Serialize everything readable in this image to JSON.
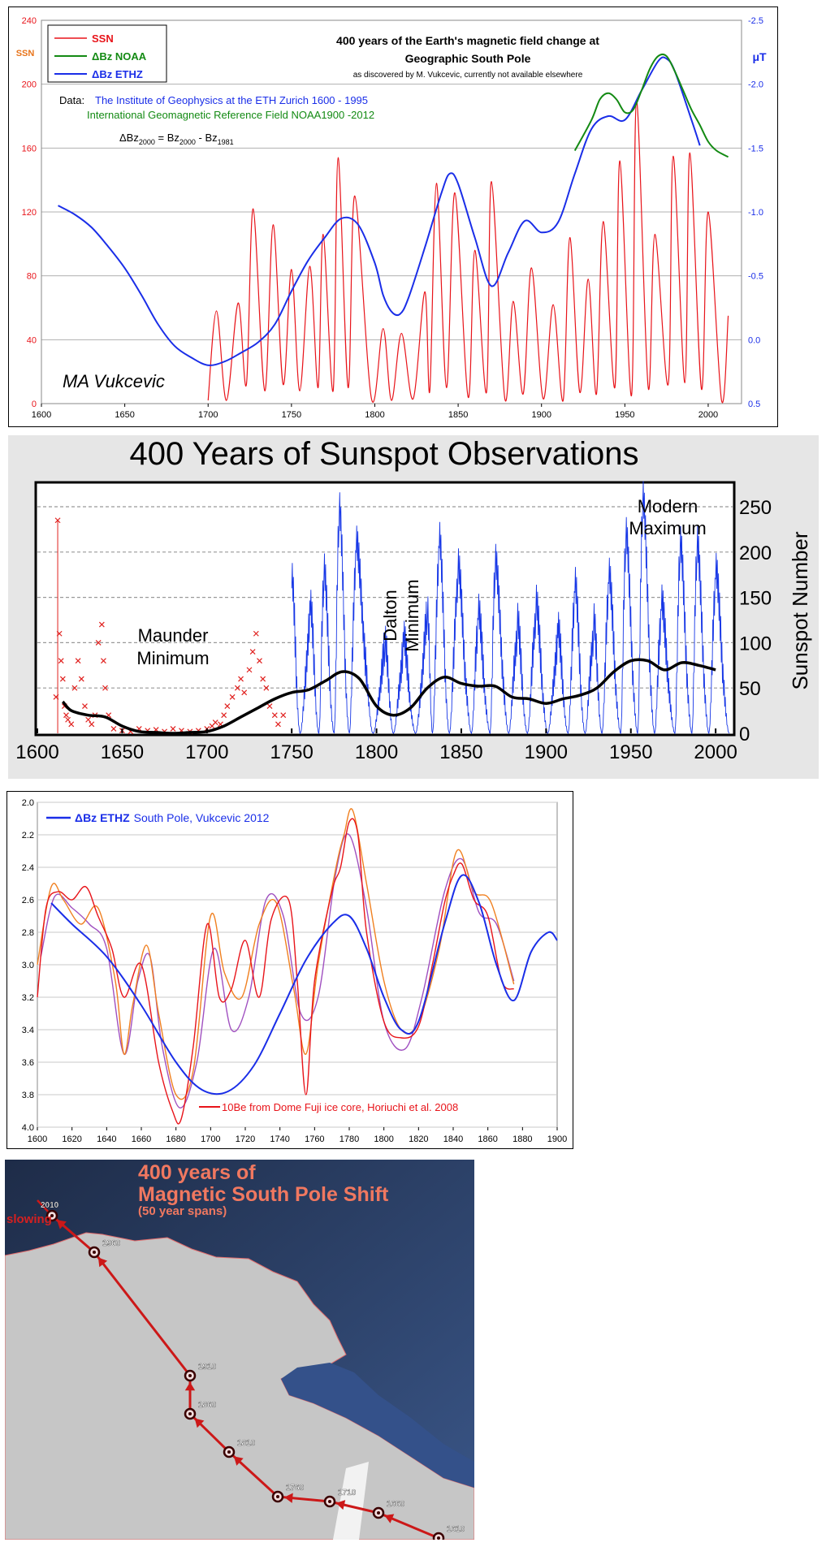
{
  "chart_data": [
    {
      "type": "line",
      "title": "400 years of the Earth's magnetic field change at",
      "title_line2": "Geographic South Pole",
      "subtitle": "as discovered by M. Vukcevic, currently not available elsewhere",
      "data_label": "Data:",
      "data_source_ethz": "The Institute of Geophysics at the ETH Zurich 1600 - 1995",
      "data_source_noaa": "International Geomagnetic Reference Field NOAA1900 -2012",
      "formula": {
        "prefix": "ΔBz",
        "sub1": "2000",
        "mid": " = Bz",
        "sub2": "2000",
        "mid2": " - Bz",
        "sub3": "1981"
      },
      "signature": "MA Vukcevic",
      "left_axis_label": "SSN",
      "right_axis_label": "μT",
      "xlim": [
        1600,
        2020
      ],
      "ylim_left": [
        0,
        240
      ],
      "ylim_right": [
        0.5,
        -2.5
      ],
      "x_ticks": [
        "1600",
        "1650",
        "1700",
        "1750",
        "1800",
        "1850",
        "1900",
        "1950",
        "2000"
      ],
      "y_ticks_left": [
        "0",
        "40",
        "80",
        "120",
        "160",
        "200",
        "240"
      ],
      "y_ticks_right": [
        "0.5",
        "0.0",
        "-0.5",
        "-1.0",
        "-1.5",
        "-2.0",
        "-2.5"
      ],
      "legend": {
        "placement": "top-left",
        "entries": [
          "SSN",
          "ΔBz NOAA",
          "ΔBz ETHZ"
        ]
      },
      "colors": {
        "SSN": "#e8141a",
        "NOAA": "#138a13",
        "ETHZ": "#1a2ee8"
      },
      "series": [
        {
          "name": "ΔBz ETHZ",
          "axis": "right",
          "x": [
            1610,
            1620,
            1630,
            1640,
            1650,
            1660,
            1670,
            1680,
            1690,
            1700,
            1710,
            1720,
            1730,
            1740,
            1750,
            1760,
            1770,
            1780,
            1790,
            1800,
            1805,
            1810,
            1815,
            1820,
            1830,
            1840,
            1845,
            1850,
            1860,
            1870,
            1880,
            1890,
            1900,
            1910,
            1920,
            1930,
            1940,
            1950,
            1960,
            1970,
            1975,
            1980,
            1990,
            1995
          ],
          "y": [
            -1.05,
            -0.98,
            -0.88,
            -0.73,
            -0.56,
            -0.35,
            -0.12,
            0.05,
            0.14,
            0.2,
            0.17,
            0.1,
            0.02,
            -0.12,
            -0.38,
            -0.62,
            -0.8,
            -0.95,
            -0.9,
            -0.6,
            -0.35,
            -0.22,
            -0.2,
            -0.32,
            -0.72,
            -1.15,
            -1.3,
            -1.22,
            -0.8,
            -0.42,
            -0.68,
            -0.93,
            -0.84,
            -0.92,
            -1.3,
            -1.65,
            -1.75,
            -1.72,
            -1.95,
            -2.18,
            -2.2,
            -2.1,
            -1.72,
            -1.52
          ]
        },
        {
          "name": "ΔBz NOAA",
          "axis": "right",
          "x": [
            1920,
            1930,
            1935,
            1940,
            1945,
            1950,
            1955,
            1960,
            1965,
            1970,
            1975,
            1980,
            1985,
            1990,
            1995,
            2000,
            2005,
            2012
          ],
          "y": [
            -1.48,
            -1.72,
            -1.88,
            -1.93,
            -1.88,
            -1.78,
            -1.8,
            -1.95,
            -2.12,
            -2.22,
            -2.22,
            -2.1,
            -1.95,
            -1.8,
            -1.68,
            -1.55,
            -1.48,
            -1.43
          ]
        },
        {
          "name": "SSN",
          "axis": "left",
          "x": [
            1700,
            1705,
            1711,
            1718,
            1723,
            1727,
            1734,
            1739,
            1745,
            1750,
            1755,
            1761,
            1766,
            1769,
            1775,
            1778,
            1784,
            1788,
            1798,
            1805,
            1810,
            1816,
            1823,
            1830,
            1833,
            1837,
            1843,
            1848,
            1856,
            1860,
            1867,
            1870,
            1878,
            1883,
            1889,
            1894,
            1901,
            1907,
            1913,
            1917,
            1923,
            1928,
            1933,
            1937,
            1944,
            1947,
            1954,
            1957,
            1964,
            1968,
            1976,
            1979,
            1986,
            1989,
            1996,
            2000,
            2008,
            2012
          ],
          "y": [
            2,
            58,
            2,
            63,
            12,
            122,
            8,
            112,
            12,
            84,
            8,
            86,
            10,
            106,
            8,
            154,
            10,
            130,
            3,
            47,
            2,
            44,
            3,
            70,
            8,
            138,
            10,
            132,
            4,
            96,
            7,
            139,
            3,
            64,
            6,
            85,
            3,
            62,
            2,
            104,
            7,
            78,
            6,
            114,
            10,
            152,
            5,
            190,
            10,
            106,
            12,
            155,
            13,
            157,
            9,
            120,
            2,
            55
          ]
        }
      ]
    },
    {
      "type": "line",
      "title": "400 Years of Sunspot Observations",
      "ylabel": "Sunspot Number",
      "xlim": [
        1600,
        2010
      ],
      "ylim": [
        0,
        250
      ],
      "x_ticks": [
        "1600",
        "1650",
        "1700",
        "1750",
        "1800",
        "1850",
        "1900",
        "1950",
        "2000"
      ],
      "y_ticks": [
        "0",
        "50",
        "100",
        "150",
        "200",
        "250"
      ],
      "grid": "dashed horizontal",
      "annotations": {
        "maunder_1": "Maunder",
        "maunder_2": "Minimum",
        "dalton_1": "Dalton",
        "dalton_2": "Minimum",
        "modern_1": "Modern",
        "modern_2": "Maximum"
      },
      "colors": {
        "early": "#e0201e",
        "monthly": "#1737e6",
        "smoothed": "#000000"
      },
      "early_points": [
        [
          1611,
          40
        ],
        [
          1612,
          235
        ],
        [
          1613,
          110
        ],
        [
          1614,
          80
        ],
        [
          1615,
          60
        ],
        [
          1616,
          30
        ],
        [
          1617,
          20
        ],
        [
          1618,
          15
        ],
        [
          1620,
          10
        ],
        [
          1622,
          50
        ],
        [
          1624,
          80
        ],
        [
          1626,
          60
        ],
        [
          1628,
          30
        ],
        [
          1630,
          15
        ],
        [
          1632,
          10
        ],
        [
          1634,
          20
        ],
        [
          1636,
          100
        ],
        [
          1638,
          120
        ],
        [
          1639,
          80
        ],
        [
          1640,
          50
        ],
        [
          1642,
          20
        ],
        [
          1645,
          5
        ],
        [
          1650,
          3
        ],
        [
          1655,
          2
        ],
        [
          1660,
          5
        ],
        [
          1665,
          3
        ],
        [
          1670,
          4
        ],
        [
          1675,
          2
        ],
        [
          1680,
          5
        ],
        [
          1685,
          3
        ],
        [
          1690,
          2
        ],
        [
          1695,
          3
        ],
        [
          1700,
          5
        ],
        [
          1703,
          8
        ],
        [
          1705,
          12
        ],
        [
          1708,
          10
        ],
        [
          1710,
          20
        ],
        [
          1712,
          30
        ],
        [
          1715,
          40
        ],
        [
          1718,
          50
        ],
        [
          1720,
          60
        ],
        [
          1722,
          45
        ],
        [
          1725,
          70
        ],
        [
          1727,
          90
        ],
        [
          1729,
          110
        ],
        [
          1731,
          80
        ],
        [
          1733,
          60
        ],
        [
          1735,
          50
        ],
        [
          1737,
          30
        ],
        [
          1740,
          20
        ],
        [
          1742,
          10
        ],
        [
          1745,
          20
        ]
      ],
      "monthly_peaks": [
        [
          1750,
          160
        ],
        [
          1755,
          0
        ],
        [
          1761,
          130
        ],
        [
          1766,
          0
        ],
        [
          1769,
          170
        ],
        [
          1775,
          0
        ],
        [
          1778,
          238
        ],
        [
          1784,
          0
        ],
        [
          1788,
          200
        ],
        [
          1798,
          0
        ],
        [
          1805,
          90
        ],
        [
          1810,
          0
        ],
        [
          1816,
          95
        ],
        [
          1823,
          0
        ],
        [
          1830,
          125
        ],
        [
          1833,
          0
        ],
        [
          1837,
          205
        ],
        [
          1843,
          0
        ],
        [
          1848,
          175
        ],
        [
          1856,
          0
        ],
        [
          1860,
          125
        ],
        [
          1867,
          0
        ],
        [
          1870,
          180
        ],
        [
          1878,
          0
        ],
        [
          1883,
          115
        ],
        [
          1889,
          0
        ],
        [
          1894,
          135
        ],
        [
          1901,
          0
        ],
        [
          1907,
          105
        ],
        [
          1913,
          0
        ],
        [
          1917,
          155
        ],
        [
          1923,
          0
        ],
        [
          1928,
          115
        ],
        [
          1933,
          0
        ],
        [
          1937,
          165
        ],
        [
          1944,
          0
        ],
        [
          1947,
          210
        ],
        [
          1954,
          0
        ],
        [
          1957,
          250
        ],
        [
          1964,
          0
        ],
        [
          1968,
          135
        ],
        [
          1976,
          0
        ],
        [
          1979,
          200
        ],
        [
          1986,
          0
        ],
        [
          1989,
          200
        ],
        [
          1996,
          0
        ],
        [
          2000,
          170
        ],
        [
          2008,
          0
        ]
      ],
      "smoothed": {
        "x": [
          1615,
          1620,
          1630,
          1640,
          1650,
          1660,
          1670,
          1680,
          1690,
          1700,
          1710,
          1720,
          1730,
          1740,
          1750,
          1760,
          1770,
          1780,
          1790,
          1800,
          1810,
          1820,
          1830,
          1840,
          1850,
          1860,
          1870,
          1880,
          1890,
          1900,
          1910,
          1920,
          1930,
          1940,
          1950,
          1960,
          1970,
          1980,
          1990,
          2000
        ],
        "y": [
          35,
          25,
          20,
          18,
          8,
          2,
          1,
          0,
          1,
          2,
          8,
          18,
          28,
          38,
          45,
          48,
          58,
          68,
          60,
          30,
          20,
          28,
          50,
          62,
          55,
          52,
          52,
          40,
          38,
          33,
          38,
          42,
          50,
          68,
          80,
          80,
          70,
          78,
          75,
          70
        ]
      }
    },
    {
      "type": "line",
      "legend_top": "ΔBz ETHZ",
      "legend_top_rest": "South Pole, Vukcevic 2012",
      "legend_bottom": "10Be from Dome Fuji ice core, Horiuchi et al. 2008",
      "xlim": [
        1600,
        1900
      ],
      "ylim": [
        4.0,
        2.0
      ],
      "x_ticks": [
        "1600",
        "1620",
        "1640",
        "1660",
        "1680",
        "1700",
        "1720",
        "1740",
        "1760",
        "1780",
        "1800",
        "1820",
        "1840",
        "1860",
        "1880",
        "1900"
      ],
      "y_ticks": [
        "2.0",
        "2.2",
        "2.4",
        "2.6",
        "2.8",
        "3.0",
        "3.2",
        "3.4",
        "3.6",
        "3.8",
        "4.0"
      ],
      "colors": {
        "ETHZ": "#1a2ee8",
        "be_red": "#e8141a",
        "be_orange": "#f08020",
        "be_purple": "#a050c0"
      },
      "series": [
        {
          "name": "ΔBz ETHZ",
          "x": [
            1608,
            1620,
            1640,
            1660,
            1680,
            1695,
            1710,
            1725,
            1740,
            1755,
            1770,
            1780,
            1790,
            1800,
            1810,
            1820,
            1835,
            1845,
            1855,
            1865,
            1875,
            1885,
            1895,
            1900
          ],
          "y": [
            2.62,
            2.75,
            2.95,
            3.25,
            3.6,
            3.77,
            3.78,
            3.62,
            3.3,
            2.97,
            2.75,
            2.7,
            2.9,
            3.2,
            3.4,
            3.35,
            2.75,
            2.45,
            2.62,
            3.0,
            3.22,
            2.92,
            2.8,
            2.85
          ]
        },
        {
          "name": "red",
          "x": [
            1600,
            1605,
            1612,
            1620,
            1628,
            1635,
            1643,
            1650,
            1660,
            1670,
            1678,
            1683,
            1690,
            1698,
            1705,
            1712,
            1720,
            1728,
            1735,
            1745,
            1750,
            1755,
            1760,
            1770,
            1775,
            1780,
            1785,
            1790,
            1800,
            1810,
            1820,
            1828,
            1835,
            1840,
            1845,
            1852,
            1860,
            1868,
            1875
          ],
          "y": [
            3.2,
            2.65,
            2.55,
            2.6,
            2.52,
            2.7,
            2.9,
            3.2,
            3.0,
            3.6,
            3.9,
            3.95,
            3.5,
            2.75,
            3.2,
            3.15,
            2.85,
            3.2,
            2.72,
            2.6,
            3.1,
            3.8,
            3.1,
            2.55,
            2.4,
            2.12,
            2.2,
            2.8,
            3.35,
            3.45,
            3.38,
            3.0,
            2.62,
            2.45,
            2.38,
            2.6,
            2.7,
            3.1,
            3.15
          ]
        },
        {
          "name": "orange",
          "x": [
            1600,
            1608,
            1615,
            1625,
            1635,
            1645,
            1650,
            1655,
            1663,
            1670,
            1680,
            1690,
            1700,
            1708,
            1718,
            1728,
            1738,
            1748,
            1755,
            1762,
            1772,
            1777,
            1782,
            1790,
            1800,
            1810,
            1820,
            1832,
            1842,
            1852,
            1862,
            1875
          ],
          "y": [
            3.0,
            2.52,
            2.6,
            2.75,
            2.65,
            3.1,
            3.55,
            3.25,
            2.88,
            3.3,
            3.8,
            3.65,
            2.7,
            3.05,
            3.2,
            2.75,
            2.62,
            3.15,
            3.55,
            3.0,
            2.42,
            2.2,
            2.05,
            2.5,
            3.1,
            3.4,
            3.35,
            2.9,
            2.3,
            2.55,
            2.62,
            3.12
          ]
        },
        {
          "name": "purple",
          "x": [
            1602,
            1610,
            1620,
            1630,
            1640,
            1650,
            1658,
            1665,
            1672,
            1682,
            1692,
            1702,
            1712,
            1722,
            1732,
            1742,
            1752,
            1762,
            1772,
            1780,
            1790,
            1800,
            1812,
            1822,
            1835,
            1845,
            1855,
            1865,
            1875
          ],
          "y": [
            2.95,
            2.58,
            2.65,
            2.75,
            2.9,
            3.55,
            3.1,
            2.95,
            3.5,
            3.88,
            3.6,
            2.9,
            3.4,
            3.2,
            2.6,
            2.7,
            3.3,
            3.2,
            2.45,
            2.2,
            2.65,
            3.35,
            3.52,
            3.2,
            2.55,
            2.35,
            2.68,
            2.75,
            3.1
          ]
        }
      ]
    }
  ],
  "map": {
    "title_line1": "400 years of",
    "title_line2": "Magnetic South Pole Shift",
    "subtitle": "(50 year spans)",
    "slowing_label": "slowing",
    "points": [
      {
        "year": "1610"
      },
      {
        "year": "1660"
      },
      {
        "year": "1710"
      },
      {
        "year": "1760"
      },
      {
        "year": "1810"
      },
      {
        "year": "1860"
      },
      {
        "year": "1910"
      },
      {
        "year": "1960"
      },
      {
        "year": "2010"
      }
    ],
    "colors": {
      "arrow": "#cc1818",
      "title": "#f07860",
      "ocean": "#2b3e63",
      "land": "#c8c8c8"
    }
  }
}
